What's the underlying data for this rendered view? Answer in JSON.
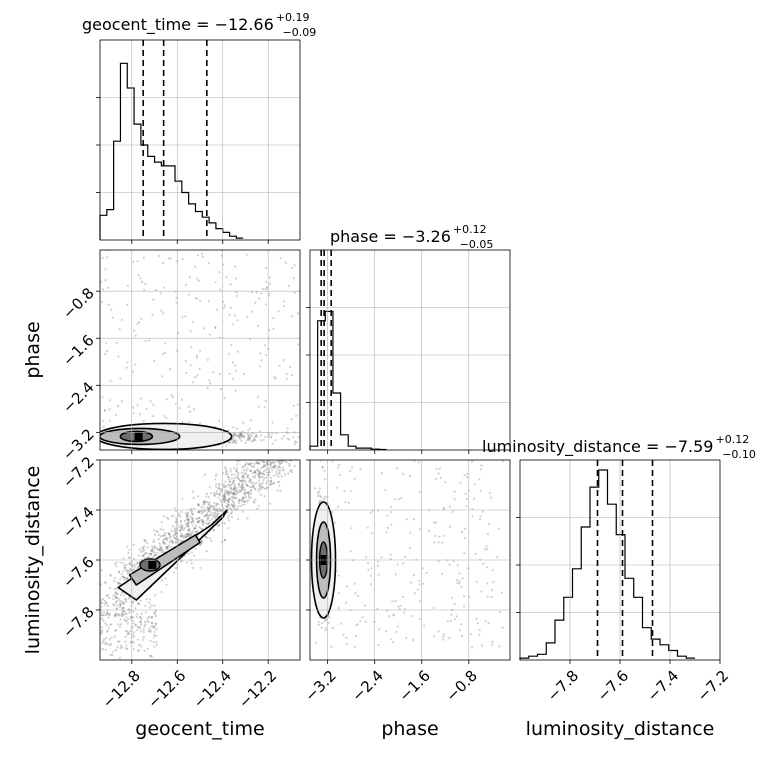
{
  "chart_data": {
    "type": "corner",
    "parameters": [
      "geocent_time",
      "phase",
      "luminosity_distance"
    ],
    "titles": [
      {
        "param": "geocent_time",
        "label": "geocent_time = −12.66",
        "plus": "+0.19",
        "minus": "−0.09"
      },
      {
        "param": "phase",
        "label": "phase = −3.26",
        "plus": "+0.12",
        "minus": "−0.05"
      },
      {
        "param": "luminosity_distance",
        "label": "luminosity_distance = −7.59",
        "plus": "+0.12",
        "minus": "−0.10"
      }
    ],
    "axes": {
      "geocent_time": {
        "range": [
          -12.94,
          -12.06
        ],
        "ticks": [
          -12.8,
          -12.6,
          -12.4,
          -12.2
        ],
        "tick_labels": [
          "−12.8",
          "−12.6",
          "−12.4",
          "−12.2"
        ]
      },
      "phase": {
        "range": [
          -3.5,
          -0.1
        ],
        "ticks": [
          -3.2,
          -2.4,
          -1.6,
          -0.8
        ],
        "tick_labels": [
          "−3.2",
          "−2.4",
          "−1.6",
          "−0.8"
        ]
      },
      "luminosity_distance": {
        "range": [
          -8.0,
          -7.2
        ],
        "ticks": [
          -7.8,
          -7.6,
          -7.4,
          -7.2
        ],
        "tick_labels": [
          "−7.8",
          "−7.6",
          "−7.4",
          "−7.2"
        ]
      }
    },
    "quantiles": {
      "geocent_time": [
        -12.75,
        -12.66,
        -12.47
      ],
      "phase": [
        -3.31,
        -3.26,
        -3.14
      ],
      "luminosity_distance": [
        -7.69,
        -7.59,
        -7.47
      ]
    },
    "histograms": {
      "geocent_time": {
        "edges_start": -12.94,
        "bin_width": 0.03,
        "counts": [
          0.13,
          0.16,
          0.52,
          0.93,
          0.8,
          0.61,
          0.5,
          0.44,
          0.41,
          0.39,
          0.39,
          0.31,
          0.25,
          0.19,
          0.15,
          0.12,
          0.09,
          0.06,
          0.04,
          0.02,
          0.01
        ]
      },
      "phase": {
        "edges_start": -3.5,
        "bin_width": 0.13,
        "counts": [
          0.02,
          0.68,
          0.73,
          0.3,
          0.08,
          0.02,
          0.01,
          0.01,
          0.005,
          0.003
        ]
      },
      "luminosity_distance": {
        "edges_start": -8.0,
        "bin_width": 0.035,
        "counts": [
          0.01,
          0.02,
          0.03,
          0.09,
          0.21,
          0.33,
          0.48,
          0.7,
          0.91,
          1.0,
          0.82,
          0.66,
          0.43,
          0.33,
          0.17,
          0.11,
          0.08,
          0.05,
          0.02,
          0.01
        ]
      }
    },
    "grid": true,
    "axis_labels": {
      "x": [
        "geocent_time",
        "phase",
        "luminosity_distance"
      ],
      "y": [
        "phase",
        "luminosity_distance"
      ]
    }
  }
}
